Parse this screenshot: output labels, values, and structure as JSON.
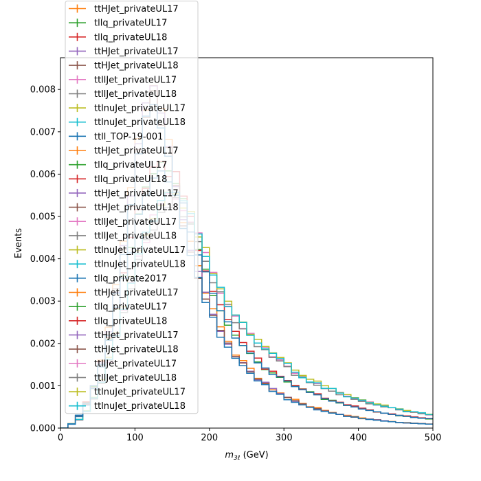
{
  "chart_data": {
    "type": "histogram-step",
    "title": "",
    "xlabel_main": "m",
    "xlabel_sub": "3ℓ",
    "xlabel_unit": " (GeV)",
    "ylabel": "Events",
    "xlim": [
      0,
      500
    ],
    "ylim": [
      0,
      0.00875
    ],
    "xticks": [
      0,
      100,
      200,
      300,
      400,
      500
    ],
    "xtick_labels": [
      "0",
      "100",
      "200",
      "300",
      "400",
      "500"
    ],
    "yticks": [
      0,
      0.001,
      0.002,
      0.003,
      0.004,
      0.005,
      0.006,
      0.007,
      0.008
    ],
    "ytick_labels": [
      "0.000",
      "0.001",
      "0.002",
      "0.003",
      "0.004",
      "0.005",
      "0.006",
      "0.007",
      "0.008"
    ],
    "grid": false,
    "legend_placement": "upper-left",
    "bin_width": 10,
    "legend": [
      {
        "name": "ttHJet_privateUL17",
        "color": "#ff7f0e"
      },
      {
        "name": "tllq_privateUL17",
        "color": "#2ca02c"
      },
      {
        "name": "tllq_privateUL18",
        "color": "#d62728"
      },
      {
        "name": "ttHJet_privateUL17",
        "color": "#9467bd"
      },
      {
        "name": "ttHJet_privateUL18",
        "color": "#8c564b"
      },
      {
        "name": "ttllJet_privateUL17",
        "color": "#e377c2"
      },
      {
        "name": "ttllJet_privateUL18",
        "color": "#7f7f7f"
      },
      {
        "name": "ttlnuJet_privateUL17",
        "color": "#bcbd22"
      },
      {
        "name": "ttlnuJet_privateUL18",
        "color": "#17becf"
      },
      {
        "name": "ttll_TOP-19-001",
        "color": "#1f77b4"
      },
      {
        "name": "ttHJet_privateUL17",
        "color": "#ff7f0e"
      },
      {
        "name": "tllq_privateUL17",
        "color": "#2ca02c"
      },
      {
        "name": "tllq_privateUL18",
        "color": "#d62728"
      },
      {
        "name": "ttHJet_privateUL17",
        "color": "#9467bd"
      },
      {
        "name": "ttHJet_privateUL18",
        "color": "#8c564b"
      },
      {
        "name": "ttllJet_privateUL17",
        "color": "#e377c2"
      },
      {
        "name": "ttllJet_privateUL18",
        "color": "#7f7f7f"
      },
      {
        "name": "ttlnuJet_privateUL17",
        "color": "#bcbd22"
      },
      {
        "name": "ttlnuJet_privateUL18",
        "color": "#17becf"
      },
      {
        "name": "tllq_private2017",
        "color": "#1f77b4"
      },
      {
        "name": "ttHJet_privateUL17",
        "color": "#ff7f0e"
      },
      {
        "name": "tllq_privateUL17",
        "color": "#2ca02c"
      },
      {
        "name": "tllq_privateUL18",
        "color": "#d62728"
      },
      {
        "name": "ttHJet_privateUL17",
        "color": "#9467bd"
      },
      {
        "name": "ttHJet_privateUL18",
        "color": "#8c564b"
      },
      {
        "name": "ttllJet_privateUL17",
        "color": "#e377c2"
      },
      {
        "name": "ttllJet_privateUL18",
        "color": "#7f7f7f"
      },
      {
        "name": "ttlnuJet_privateUL17",
        "color": "#bcbd22"
      },
      {
        "name": "ttlnuJet_privateUL18",
        "color": "#17becf"
      }
    ],
    "shapes": {
      "A": [
        0,
        0.0001,
        0.0003,
        0.0006,
        0.001,
        0.0016,
        0.0024,
        0.0034,
        0.0045,
        0.0057,
        0.0069,
        0.0078,
        0.0083,
        0.0078,
        0.007,
        0.006,
        0.0051,
        0.0045,
        0.0038,
        0.0033,
        0.0028,
        0.0024,
        0.0021,
        0.0018,
        0.0016,
        0.0014,
        0.0012,
        0.0011,
        0.00095,
        0.00085,
        0.00075,
        0.00068,
        0.0006,
        0.00052,
        0.00048,
        0.00042,
        0.00038,
        0.00034,
        0.0003,
        0.00028,
        0.00024,
        0.00022,
        0.0002,
        0.00018,
        0.00016,
        0.00014,
        0.00013,
        0.00012,
        0.00011,
        0.0001
      ],
      "B": [
        0,
        0.0001,
        0.0002,
        0.0004,
        0.0007,
        0.0011,
        0.0016,
        0.0022,
        0.0028,
        0.0034,
        0.004,
        0.0045,
        0.0049,
        0.0052,
        0.0054,
        0.0055,
        0.0052,
        0.0049,
        0.0045,
        0.0041,
        0.0036,
        0.0032,
        0.0029,
        0.0026,
        0.0024,
        0.0022,
        0.002,
        0.0019,
        0.0017,
        0.0016,
        0.0015,
        0.0013,
        0.0012,
        0.0011,
        0.00105,
        0.00095,
        0.0009,
        0.00082,
        0.00075,
        0.0007,
        0.00065,
        0.0006,
        0.00055,
        0.00052,
        0.00048,
        0.00044,
        0.0004,
        0.00038,
        0.00035,
        0.00032
      ],
      "C": [
        0,
        0.0001,
        0.0003,
        0.0006,
        0.001,
        0.0015,
        0.0021,
        0.0028,
        0.0036,
        0.0043,
        0.005,
        0.0056,
        0.006,
        0.0061,
        0.006,
        0.0058,
        0.0053,
        0.0048,
        0.0042,
        0.0037,
        0.0032,
        0.0028,
        0.0025,
        0.0022,
        0.002,
        0.0018,
        0.0016,
        0.0014,
        0.0013,
        0.0012,
        0.0011,
        0.001,
        0.0009,
        0.00085,
        0.0008,
        0.0007,
        0.00065,
        0.0006,
        0.00055,
        0.0005,
        0.00045,
        0.00042,
        0.00038,
        0.00035,
        0.00032,
        0.0003,
        0.00028,
        0.00026,
        0.00024,
        0.00022
      ]
    },
    "series": [
      {
        "name": "ttHJet_privateUL17",
        "color": "#ff7f0e",
        "shape": "A",
        "scale": 0.98,
        "seed": 1
      },
      {
        "name": "tllq_privateUL17",
        "color": "#2ca02c",
        "shape": "C",
        "scale": 1.0,
        "seed": 2
      },
      {
        "name": "tllq_privateUL18",
        "color": "#d62728",
        "shape": "C",
        "scale": 1.02,
        "seed": 3
      },
      {
        "name": "ttHJet_privateUL17",
        "color": "#9467bd",
        "shape": "A",
        "scale": 0.96,
        "seed": 4
      },
      {
        "name": "ttHJet_privateUL18",
        "color": "#8c564b",
        "shape": "A",
        "scale": 0.94,
        "seed": 5
      },
      {
        "name": "ttllJet_privateUL17",
        "color": "#e377c2",
        "shape": "B",
        "scale": 1.0,
        "seed": 6
      },
      {
        "name": "ttllJet_privateUL18",
        "color": "#7f7f7f",
        "shape": "B",
        "scale": 0.98,
        "seed": 7
      },
      {
        "name": "ttlnuJet_privateUL17",
        "color": "#bcbd22",
        "shape": "B",
        "scale": 1.03,
        "seed": 8
      },
      {
        "name": "ttlnuJet_privateUL18",
        "color": "#17becf",
        "shape": "B",
        "scale": 1.01,
        "seed": 9
      },
      {
        "name": "ttll_TOP-19-001",
        "color": "#1f77b4",
        "shape": "C",
        "scale": 0.99,
        "seed": 10
      },
      {
        "name": "tllq_private2017",
        "color": "#1f77b4",
        "shape": "A",
        "scale": 0.92,
        "seed": 11
      }
    ]
  }
}
